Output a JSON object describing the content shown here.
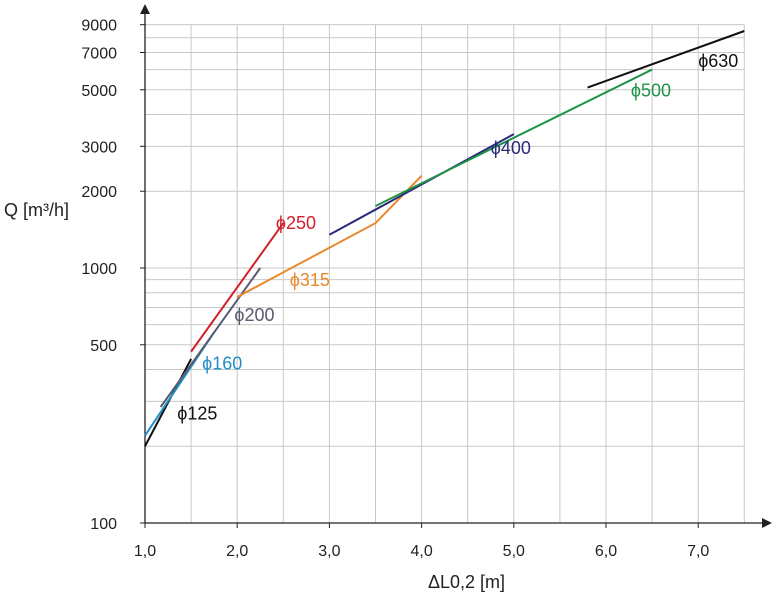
{
  "chart_data": {
    "type": "line",
    "xlabel": "ΔL0,2 [m]",
    "ylabel": "Q [m³/h]",
    "xlim": [
      1.0,
      7.5
    ],
    "ylim": [
      100,
      10000
    ],
    "yscale": "log",
    "grid": true,
    "x_ticks": [
      "1,0",
      "2,0",
      "3,0",
      "4,0",
      "5,0",
      "6,0",
      "7,0"
    ],
    "y_ticks": [
      "100",
      "500",
      "1000",
      "2000",
      "3000",
      "5000",
      "7000",
      "9000"
    ],
    "series": [
      {
        "name": "ϕ125",
        "color": "#111111",
        "x": [
          1.0,
          1.5
        ],
        "y": [
          200,
          440
        ]
      },
      {
        "name": "ϕ160",
        "color": "#1f8fc8",
        "x": [
          1.0,
          1.75
        ],
        "y": [
          220,
          560
        ]
      },
      {
        "name": "ϕ200",
        "color": "#5a5a6e",
        "x": [
          1.17,
          2.25
        ],
        "y": [
          285,
          1000
        ]
      },
      {
        "name": "ϕ250",
        "color": "#d21f2b",
        "x": [
          1.5,
          2.5
        ],
        "y": [
          470,
          1500
        ]
      },
      {
        "name": "ϕ315",
        "color": "#e8892c",
        "x": [
          2.0,
          3.5,
          4.0
        ],
        "y": [
          770,
          1500,
          2300
        ]
      },
      {
        "name": "ϕ400",
        "color": "#2a2a7a",
        "x": [
          3.0,
          5.0
        ],
        "y": [
          1350,
          3350
        ]
      },
      {
        "name": "ϕ500",
        "color": "#1c9447",
        "x": [
          3.5,
          6.5
        ],
        "y": [
          1750,
          6000
        ]
      },
      {
        "name": "ϕ630",
        "color": "#111111",
        "x": [
          5.8,
          7.5
        ],
        "y": [
          5100,
          8500
        ]
      }
    ]
  }
}
